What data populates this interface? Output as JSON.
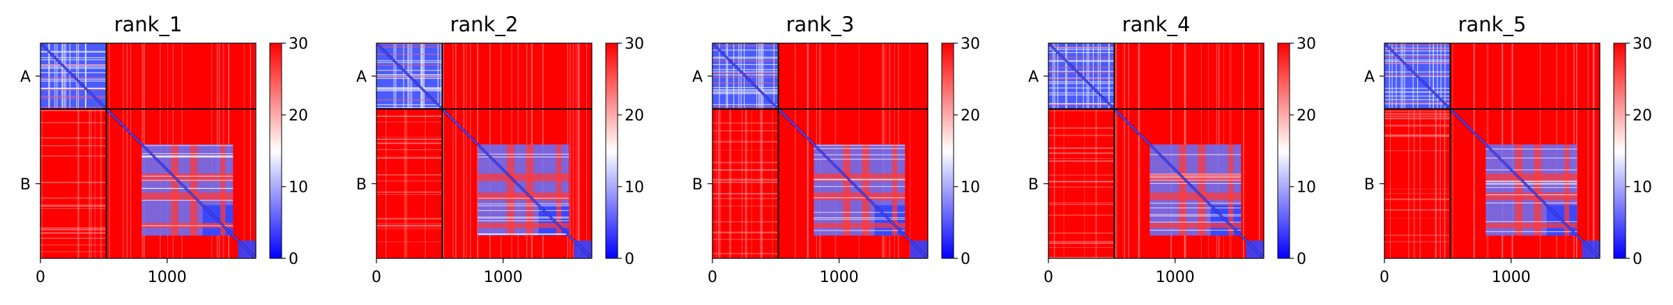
{
  "chart_data": {
    "type": "heatmap",
    "title_list": [
      "rank_1",
      "rank_2",
      "rank_3",
      "rank_4",
      "rank_5"
    ],
    "panels": [
      {
        "title": "rank_1",
        "x_ticks": [
          0,
          1000
        ],
        "y_labels": [
          "A",
          "B"
        ],
        "colorbar_ticks": [
          0,
          10,
          20,
          30
        ]
      },
      {
        "title": "rank_2",
        "x_ticks": [
          0,
          1000
        ],
        "y_labels": [
          "A",
          "B"
        ],
        "colorbar_ticks": [
          0,
          10,
          20,
          30
        ]
      },
      {
        "title": "rank_3",
        "x_ticks": [
          0,
          1000
        ],
        "y_labels": [
          "A",
          "B"
        ],
        "colorbar_ticks": [
          0,
          10,
          20,
          30
        ]
      },
      {
        "title": "rank_4",
        "x_ticks": [
          0,
          1000
        ],
        "y_labels": [
          "A",
          "B"
        ],
        "colorbar_ticks": [
          0,
          10,
          20,
          30
        ]
      },
      {
        "title": "rank_5",
        "x_ticks": [
          0,
          1000
        ],
        "y_labels": [
          "A",
          "B"
        ],
        "colorbar_ticks": [
          0,
          10,
          20,
          30
        ]
      }
    ],
    "matrix_size": 1700,
    "chain_boundary": 520,
    "chains": [
      {
        "name": "A",
        "start": 0,
        "end": 520
      },
      {
        "name": "B",
        "start": 520,
        "end": 1700
      }
    ],
    "b_domains": [
      {
        "start": 800,
        "end": 1520
      },
      {
        "start": 1280,
        "end": 1520
      },
      {
        "start": 1560,
        "end": 1700
      }
    ],
    "color_range": [
      0,
      30
    ],
    "colormap": "bwr",
    "colors": {
      "low": "#0000ff",
      "mid": "#ffffff",
      "high": "#ff0000"
    }
  }
}
